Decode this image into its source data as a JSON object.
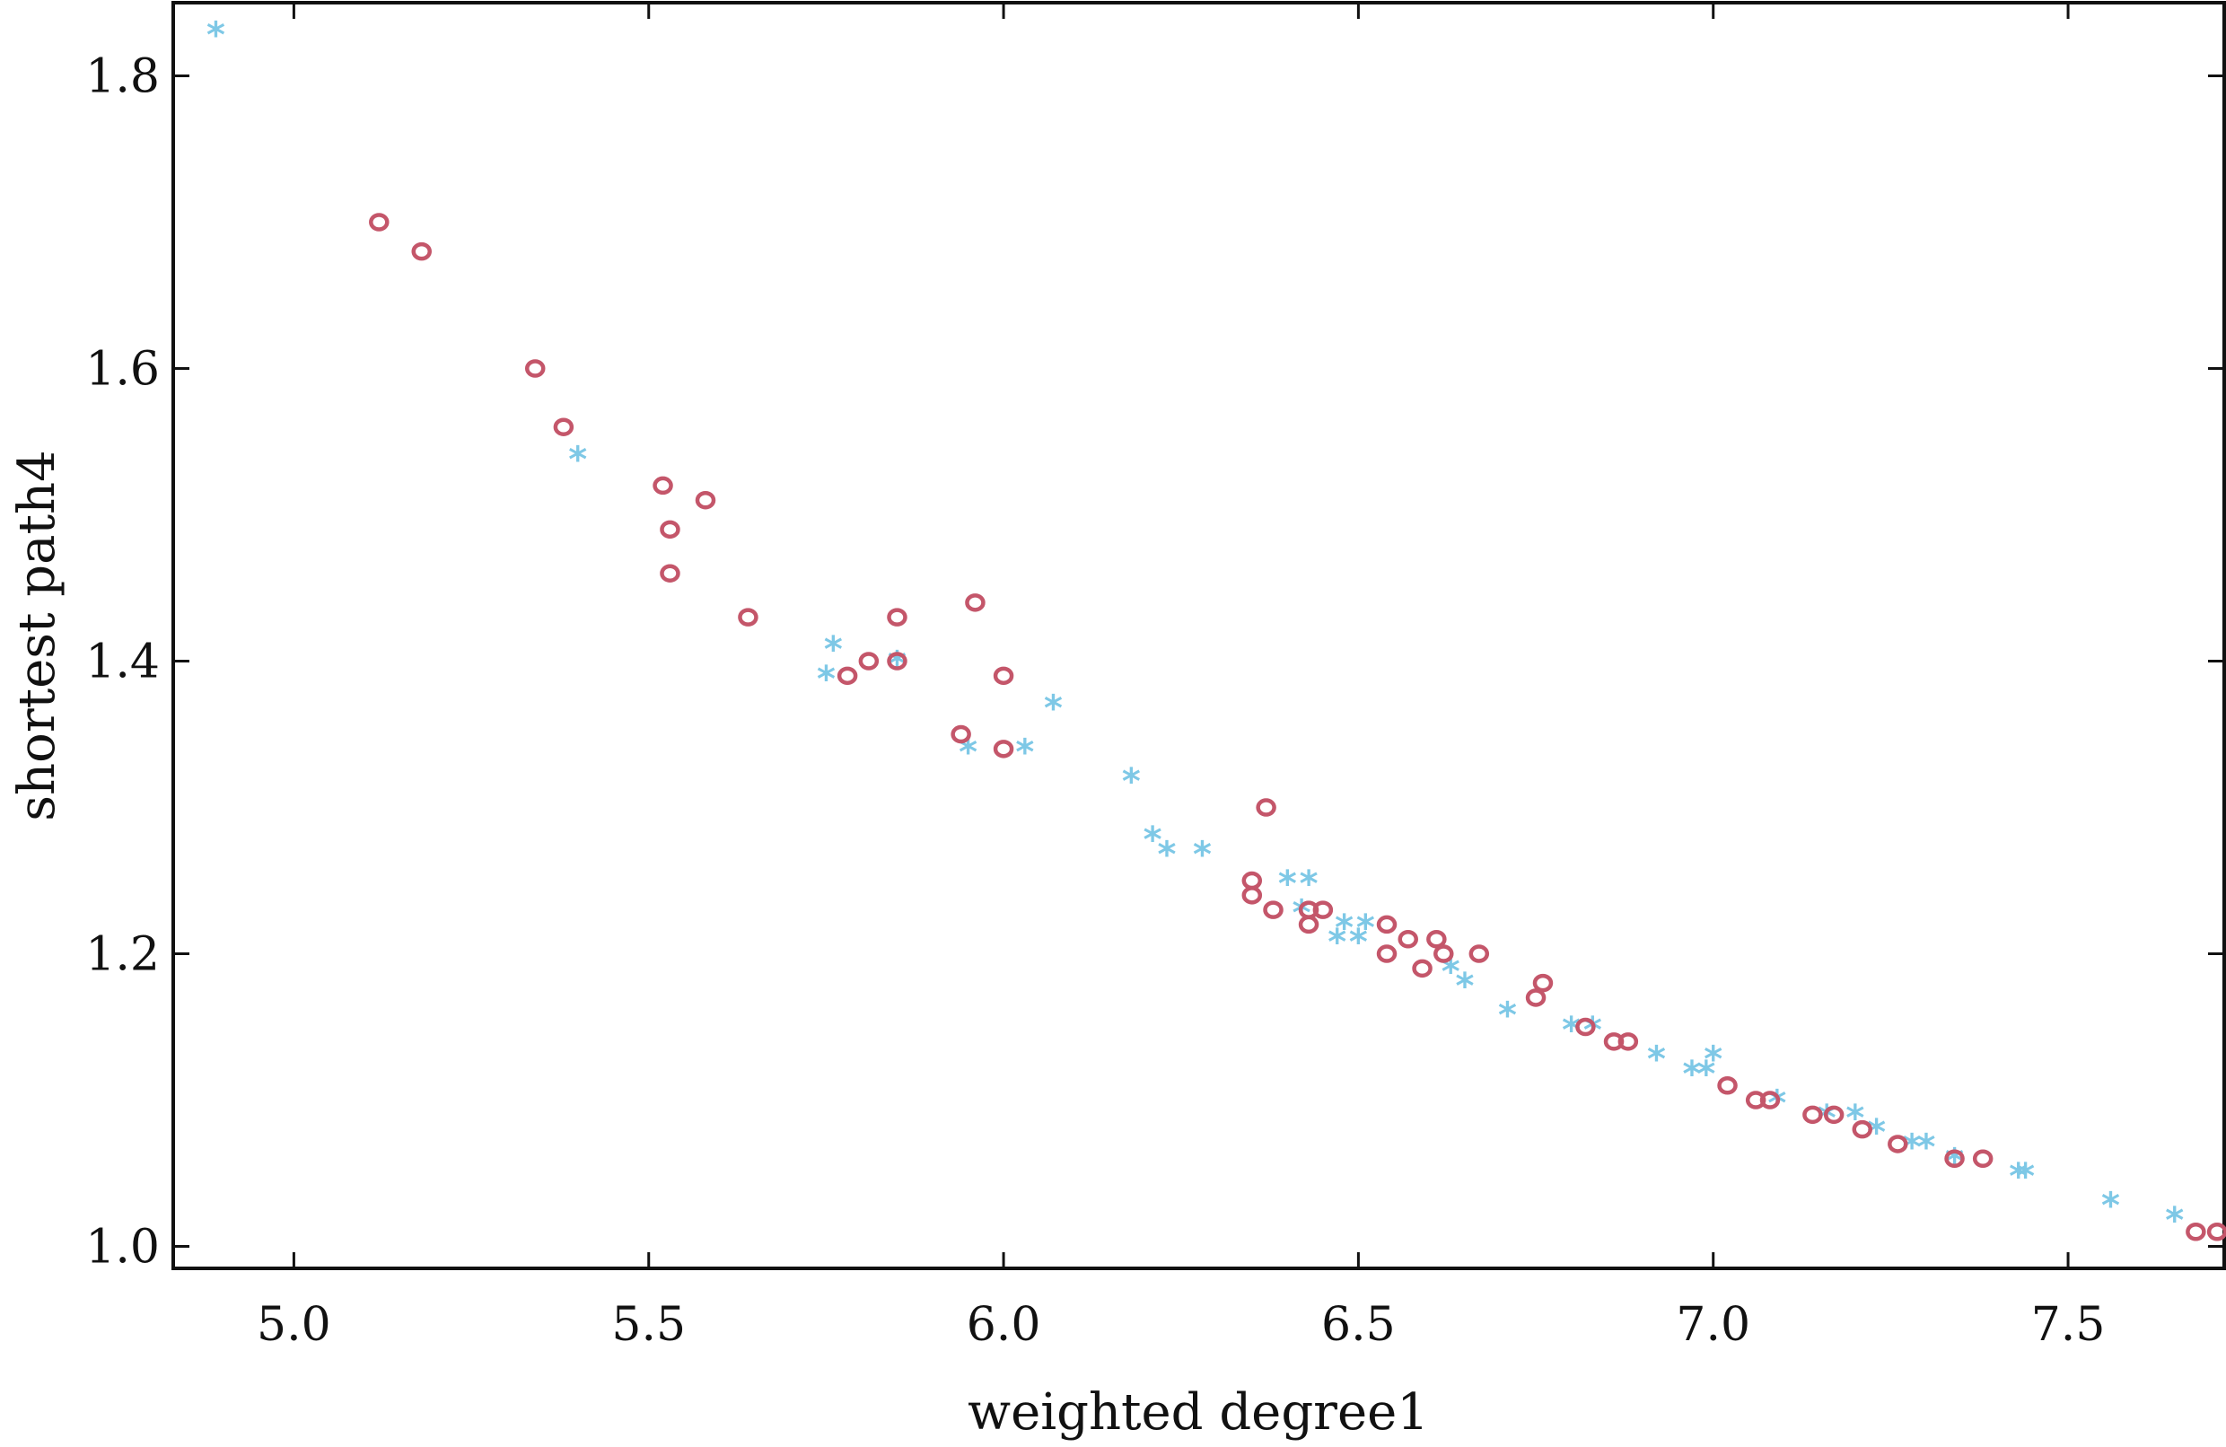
{
  "chart_data": {
    "type": "scatter",
    "xlabel": "weighted degree1",
    "ylabel": "shortest path4",
    "xlim": [
      4.83,
      7.72
    ],
    "ylim": [
      0.985,
      1.85
    ],
    "xticks": [
      "5.0",
      "5.5",
      "6.0",
      "6.5",
      "7.0",
      "7.5"
    ],
    "yticks": [
      "1.0",
      "1.2",
      "1.4",
      "1.6",
      "1.8"
    ],
    "grid": false,
    "legend": "none",
    "series": [
      {
        "marker": "star",
        "color": "#7ec8e6",
        "points": [
          [
            4.89,
            1.83
          ],
          [
            5.4,
            1.54
          ],
          [
            5.75,
            1.39
          ],
          [
            5.76,
            1.41
          ],
          [
            5.85,
            1.4
          ],
          [
            5.95,
            1.34
          ],
          [
            6.03,
            1.34
          ],
          [
            6.07,
            1.37
          ],
          [
            6.18,
            1.32
          ],
          [
            6.21,
            1.28
          ],
          [
            6.23,
            1.27
          ],
          [
            6.28,
            1.27
          ],
          [
            6.4,
            1.25
          ],
          [
            6.43,
            1.25
          ],
          [
            6.42,
            1.23
          ],
          [
            6.47,
            1.21
          ],
          [
            6.48,
            1.22
          ],
          [
            6.5,
            1.21
          ],
          [
            6.51,
            1.22
          ],
          [
            6.63,
            1.19
          ],
          [
            6.65,
            1.18
          ],
          [
            6.71,
            1.16
          ],
          [
            6.8,
            1.15
          ],
          [
            6.83,
            1.15
          ],
          [
            6.92,
            1.13
          ],
          [
            6.97,
            1.12
          ],
          [
            6.99,
            1.12
          ],
          [
            7.0,
            1.13
          ],
          [
            7.09,
            1.1
          ],
          [
            7.16,
            1.09
          ],
          [
            7.2,
            1.09
          ],
          [
            7.23,
            1.08
          ],
          [
            7.28,
            1.07
          ],
          [
            7.3,
            1.07
          ],
          [
            7.34,
            1.06
          ],
          [
            7.43,
            1.05
          ],
          [
            7.44,
            1.05
          ],
          [
            7.56,
            1.03
          ],
          [
            7.65,
            1.02
          ]
        ]
      },
      {
        "marker": "circle",
        "color": "#c4566a",
        "points": [
          [
            5.12,
            1.7
          ],
          [
            5.18,
            1.68
          ],
          [
            5.34,
            1.6
          ],
          [
            5.38,
            1.56
          ],
          [
            5.52,
            1.52
          ],
          [
            5.58,
            1.51
          ],
          [
            5.53,
            1.49
          ],
          [
            5.53,
            1.46
          ],
          [
            5.64,
            1.43
          ],
          [
            5.78,
            1.39
          ],
          [
            5.81,
            1.4
          ],
          [
            5.85,
            1.4
          ],
          [
            5.85,
            1.43
          ],
          [
            5.96,
            1.44
          ],
          [
            6.0,
            1.39
          ],
          [
            5.94,
            1.35
          ],
          [
            6.0,
            1.34
          ],
          [
            6.37,
            1.3
          ],
          [
            6.35,
            1.25
          ],
          [
            6.35,
            1.24
          ],
          [
            6.38,
            1.23
          ],
          [
            6.43,
            1.23
          ],
          [
            6.43,
            1.22
          ],
          [
            6.45,
            1.23
          ],
          [
            6.54,
            1.22
          ],
          [
            6.54,
            1.2
          ],
          [
            6.57,
            1.21
          ],
          [
            6.59,
            1.19
          ],
          [
            6.61,
            1.21
          ],
          [
            6.62,
            1.2
          ],
          [
            6.67,
            1.2
          ],
          [
            6.76,
            1.18
          ],
          [
            6.75,
            1.17
          ],
          [
            6.82,
            1.15
          ],
          [
            6.86,
            1.14
          ],
          [
            6.88,
            1.14
          ],
          [
            7.02,
            1.11
          ],
          [
            7.06,
            1.1
          ],
          [
            7.08,
            1.1
          ],
          [
            7.14,
            1.09
          ],
          [
            7.17,
            1.09
          ],
          [
            7.21,
            1.08
          ],
          [
            7.26,
            1.07
          ],
          [
            7.34,
            1.06
          ],
          [
            7.38,
            1.06
          ],
          [
            7.68,
            1.01
          ],
          [
            7.71,
            1.01
          ]
        ]
      }
    ]
  }
}
